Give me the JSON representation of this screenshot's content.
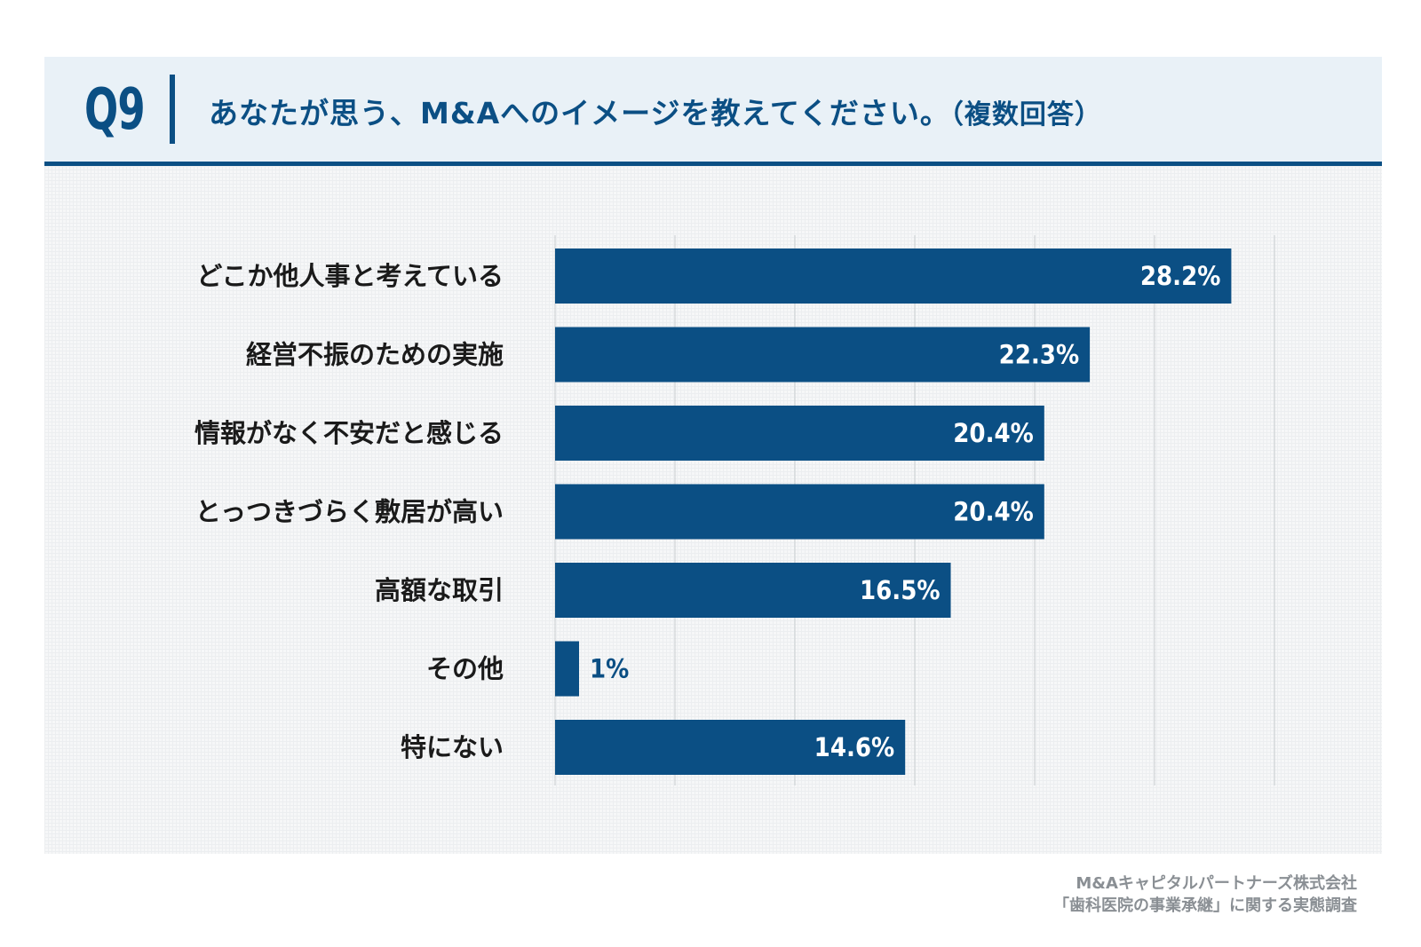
{
  "header": {
    "question_no": "Q9",
    "title": "あなたが思う、M&Aへのイメージを教えてください。",
    "note": "（複数回答）"
  },
  "colors": {
    "primary": "#0b4f84",
    "bar": "#0b4f84",
    "header_bg": "#e9f1f7",
    "bar_label": "#ffffff",
    "credit": "#8a8f94"
  },
  "chart_data": {
    "type": "bar",
    "orientation": "horizontal",
    "categories": [
      "どこか他人事と考えている",
      "経営不振のための実施",
      "情報がなく不安だと感じる",
      "とっつきづらく敷居が高い",
      "高額な取引",
      "その他",
      "特にない"
    ],
    "values": [
      28.2,
      22.3,
      20.4,
      20.4,
      16.5,
      1,
      14.6
    ],
    "value_labels": [
      "28.2%",
      "22.3%",
      "20.4%",
      "20.4%",
      "16.5%",
      "1%",
      "14.6%"
    ],
    "unit": "%",
    "xlim": [
      0,
      30
    ],
    "grid": true
  },
  "credit": {
    "line1": "M&Aキャピタルパートナーズ株式会社",
    "line2": "「歯科医院の事業承継」に関する実態調査"
  }
}
